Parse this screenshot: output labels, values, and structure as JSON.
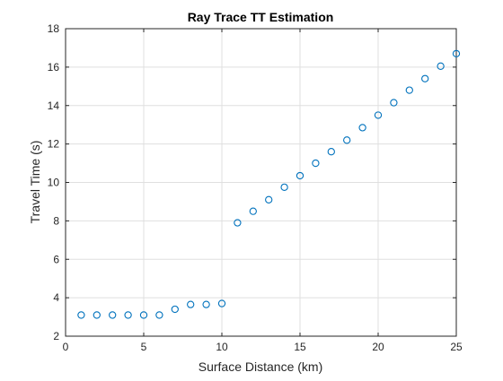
{
  "chart_data": {
    "type": "scatter",
    "title": "Ray Trace TT Estimation",
    "xlabel": "Surface Distance (km)",
    "ylabel": "Travel Time (s)",
    "xlim": [
      0,
      25
    ],
    "ylim": [
      2,
      18
    ],
    "xticks": [
      0,
      5,
      10,
      15,
      20,
      25
    ],
    "yticks": [
      2,
      4,
      6,
      8,
      10,
      12,
      14,
      16,
      18
    ],
    "grid": true,
    "marker": "open-circle",
    "marker_color": "#0072BD",
    "series": [
      {
        "x": [
          1,
          2,
          3,
          4,
          5,
          6,
          7,
          8,
          9,
          10,
          11,
          12,
          13,
          14,
          15,
          16,
          17,
          18,
          19,
          20,
          21,
          22,
          23,
          24,
          25
        ],
        "y": [
          3.1,
          3.1,
          3.1,
          3.1,
          3.1,
          3.1,
          3.4,
          3.65,
          3.65,
          3.7,
          7.9,
          8.5,
          9.1,
          9.75,
          10.35,
          11.0,
          11.6,
          12.2,
          12.85,
          13.5,
          14.15,
          14.8,
          15.4,
          16.05,
          16.7
        ]
      }
    ]
  }
}
